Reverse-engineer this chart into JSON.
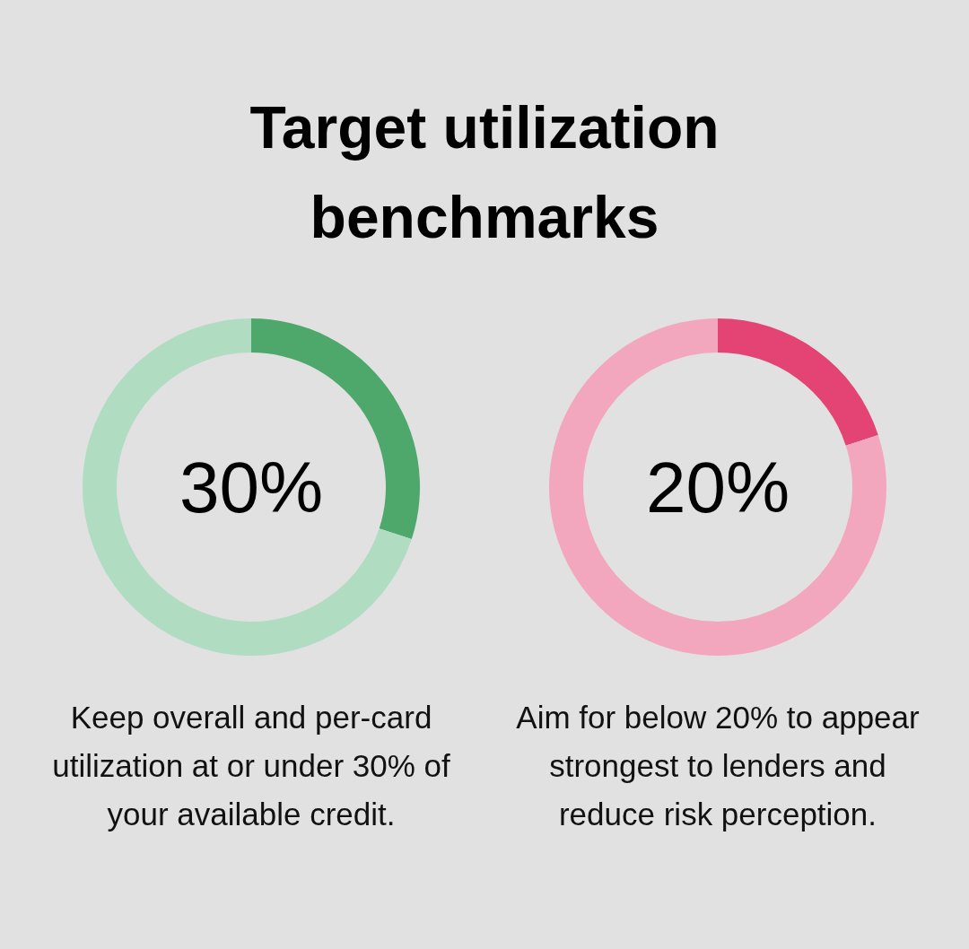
{
  "chart_data": [
    {
      "type": "donut",
      "title": "Target utilization benchmarks",
      "categories": [
        null,
        null
      ],
      "values": [
        30,
        70
      ],
      "colors": [
        "#4ea86c",
        "#b0dcc2"
      ],
      "annotations": [
        "30%",
        "Keep overall and per-card utilization at or under 30% of your available credit."
      ]
    },
    {
      "type": "donut",
      "categories": [
        null,
        null
      ],
      "values": [
        20,
        80
      ],
      "colors": [
        "#e34474",
        "#f2a7bf"
      ],
      "annotations": [
        "20%",
        "Aim for below 20% to appear strongest to lenders and reduce risk perception."
      ]
    }
  ]
}
